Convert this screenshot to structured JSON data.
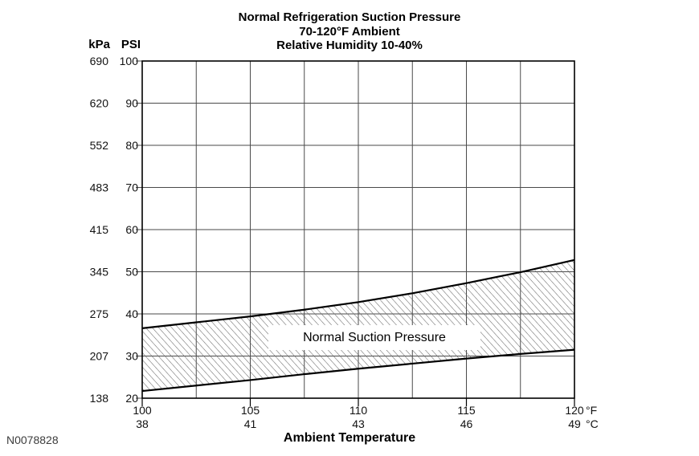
{
  "figure": {
    "watermark": "N0078828"
  },
  "chart_data": {
    "type": "area",
    "title": "Normal Refrigeration Suction Pressure",
    "subtitle": [
      "70-120°F Ambient",
      "Relative Humidity 10-40%"
    ],
    "xlabel": "Ambient Temperature",
    "x_units": [
      "°F",
      "°C"
    ],
    "y_units": [
      "kPa",
      "PSI"
    ],
    "xlim": [
      100,
      120
    ],
    "ylim_psi": [
      20,
      100
    ],
    "x_minor_step": 2.5,
    "grid": true,
    "legend": "none",
    "y_ticks": [
      {
        "kpa": 690,
        "psi": 100
      },
      {
        "kpa": 620,
        "psi": 90
      },
      {
        "kpa": 552,
        "psi": 80
      },
      {
        "kpa": 483,
        "psi": 70
      },
      {
        "kpa": 415,
        "psi": 60
      },
      {
        "kpa": 345,
        "psi": 50
      },
      {
        "kpa": 275,
        "psi": 40
      },
      {
        "kpa": 207,
        "psi": 30
      },
      {
        "kpa": 138,
        "psi": 20
      }
    ],
    "x_ticks": [
      {
        "f": 100,
        "c": 38
      },
      {
        "f": 105,
        "c": 41
      },
      {
        "f": 110,
        "c": 43
      },
      {
        "f": 115,
        "c": 46
      },
      {
        "f": 120,
        "c": 49
      }
    ],
    "band": {
      "label": "Normal Suction Pressure",
      "x_f": [
        100,
        102.5,
        105,
        107.5,
        110,
        112.5,
        115,
        117.5,
        120
      ],
      "upper_psi": [
        36.6,
        38.0,
        39.4,
        41.0,
        42.8,
        44.9,
        47.3,
        49.9,
        52.8
      ],
      "lower_psi": [
        21.7,
        23.0,
        24.3,
        25.7,
        27.0,
        28.2,
        29.4,
        30.5,
        31.5
      ]
    },
    "colors": {
      "line": "#000000",
      "grid": "#4a4a4a",
      "hatch": "#686868",
      "background": "#ffffff"
    }
  }
}
